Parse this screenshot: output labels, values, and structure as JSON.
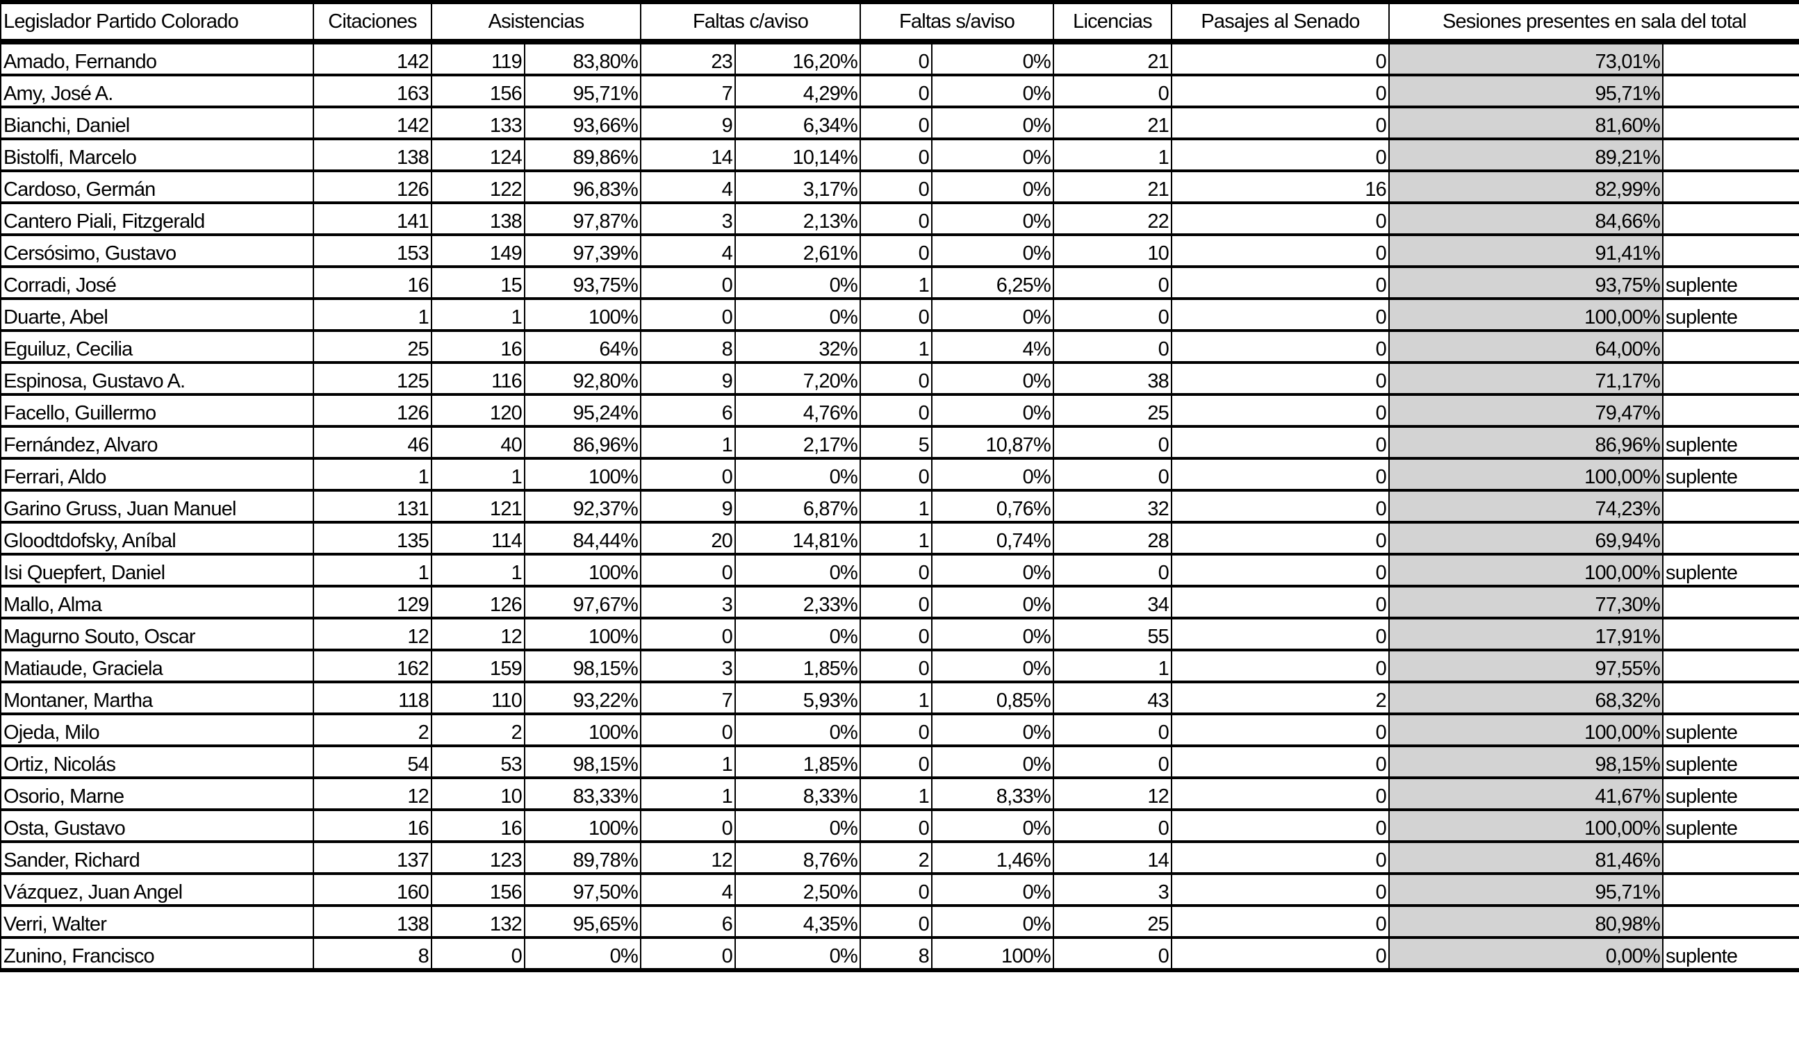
{
  "headers": [
    "Legislador Partido Colorado",
    "Citaciones",
    "Asistencias",
    "Faltas c/aviso",
    "Faltas s/aviso",
    "Licencias",
    "Pasajes al Senado",
    "Sesiones presentes en sala del total"
  ],
  "rows": [
    [
      "Amado, Fernando",
      "142",
      "119",
      "83,80%",
      "23",
      "16,20%",
      "0",
      "0%",
      "21",
      "0",
      "73,01%",
      ""
    ],
    [
      "Amy, José A.",
      "163",
      "156",
      "95,71%",
      "7",
      "4,29%",
      "0",
      "0%",
      "0",
      "0",
      "95,71%",
      ""
    ],
    [
      "Bianchi, Daniel",
      "142",
      "133",
      "93,66%",
      "9",
      "6,34%",
      "0",
      "0%",
      "21",
      "0",
      "81,60%",
      ""
    ],
    [
      "Bistolfi, Marcelo",
      "138",
      "124",
      "89,86%",
      "14",
      "10,14%",
      "0",
      "0%",
      "1",
      "0",
      "89,21%",
      ""
    ],
    [
      "Cardoso, Germán",
      "126",
      "122",
      "96,83%",
      "4",
      "3,17%",
      "0",
      "0%",
      "21",
      "16",
      "82,99%",
      ""
    ],
    [
      "Cantero Piali, Fitzgerald",
      "141",
      "138",
      "97,87%",
      "3",
      "2,13%",
      "0",
      "0%",
      "22",
      "0",
      "84,66%",
      ""
    ],
    [
      "Cersósimo, Gustavo",
      "153",
      "149",
      "97,39%",
      "4",
      "2,61%",
      "0",
      "0%",
      "10",
      "0",
      "91,41%",
      ""
    ],
    [
      "Corradi, José",
      "16",
      "15",
      "93,75%",
      "0",
      "0%",
      "1",
      "6,25%",
      "0",
      "0",
      "93,75%",
      "suplente"
    ],
    [
      "Duarte, Abel",
      "1",
      "1",
      "100%",
      "0",
      "0%",
      "0",
      "0%",
      "0",
      "0",
      "100,00%",
      "suplente"
    ],
    [
      "Eguiluz, Cecilia",
      "25",
      "16",
      "64%",
      "8",
      "32%",
      "1",
      "4%",
      "0",
      "0",
      "64,00%",
      ""
    ],
    [
      "Espinosa, Gustavo A.",
      "125",
      "116",
      "92,80%",
      "9",
      "7,20%",
      "0",
      "0%",
      "38",
      "0",
      "71,17%",
      ""
    ],
    [
      "Facello, Guillermo",
      "126",
      "120",
      "95,24%",
      "6",
      "4,76%",
      "0",
      "0%",
      "25",
      "0",
      "79,47%",
      ""
    ],
    [
      "Fernández, Alvaro",
      "46",
      "40",
      "86,96%",
      "1",
      "2,17%",
      "5",
      "10,87%",
      "0",
      "0",
      "86,96%",
      "suplente"
    ],
    [
      "Ferrari, Aldo",
      "1",
      "1",
      "100%",
      "0",
      "0%",
      "0",
      "0%",
      "0",
      "0",
      "100,00%",
      "suplente"
    ],
    [
      "Garino Gruss, Juan Manuel",
      "131",
      "121",
      "92,37%",
      "9",
      "6,87%",
      "1",
      "0,76%",
      "32",
      "0",
      "74,23%",
      ""
    ],
    [
      "Gloodtdofsky, Aníbal",
      "135",
      "114",
      "84,44%",
      "20",
      "14,81%",
      "1",
      "0,74%",
      "28",
      "0",
      "69,94%",
      ""
    ],
    [
      "Isi Quepfert, Daniel",
      "1",
      "1",
      "100%",
      "0",
      "0%",
      "0",
      "0%",
      "0",
      "0",
      "100,00%",
      "suplente"
    ],
    [
      "Mallo, Alma",
      "129",
      "126",
      "97,67%",
      "3",
      "2,33%",
      "0",
      "0%",
      "34",
      "0",
      "77,30%",
      ""
    ],
    [
      "Magurno Souto, Oscar",
      "12",
      "12",
      "100%",
      "0",
      "0%",
      "0",
      "0%",
      "55",
      "0",
      "17,91%",
      ""
    ],
    [
      "Matiaude, Graciela",
      "162",
      "159",
      "98,15%",
      "3",
      "1,85%",
      "0",
      "0%",
      "1",
      "0",
      "97,55%",
      ""
    ],
    [
      "Montaner, Martha",
      "118",
      "110",
      "93,22%",
      "7",
      "5,93%",
      "1",
      "0,85%",
      "43",
      "2",
      "68,32%",
      ""
    ],
    [
      "Ojeda, Milo",
      "2",
      "2",
      "100%",
      "0",
      "0%",
      "0",
      "0%",
      "0",
      "0",
      "100,00%",
      "suplente"
    ],
    [
      "Ortiz, Nicolás",
      "54",
      "53",
      "98,15%",
      "1",
      "1,85%",
      "0",
      "0%",
      "0",
      "0",
      "98,15%",
      "suplente"
    ],
    [
      "Osorio, Marne",
      "12",
      "10",
      "83,33%",
      "1",
      "8,33%",
      "1",
      "8,33%",
      "12",
      "0",
      "41,67%",
      "suplente"
    ],
    [
      "Osta, Gustavo",
      "16",
      "16",
      "100%",
      "0",
      "0%",
      "0",
      "0%",
      "0",
      "0",
      "100,00%",
      "suplente"
    ],
    [
      "Sander, Richard",
      "137",
      "123",
      "89,78%",
      "12",
      "8,76%",
      "2",
      "1,46%",
      "14",
      "0",
      "81,46%",
      ""
    ],
    [
      "Vázquez, Juan Angel",
      "160",
      "156",
      "97,50%",
      "4",
      "2,50%",
      "0",
      "0%",
      "3",
      "0",
      "95,71%",
      ""
    ],
    [
      "Verri, Walter",
      "138",
      "132",
      "95,65%",
      "6",
      "4,35%",
      "0",
      "0%",
      "25",
      "0",
      "80,98%",
      ""
    ],
    [
      "Zunino, Francisco",
      "8",
      "0",
      "0%",
      "0",
      "0%",
      "8",
      "100%",
      "0",
      "0",
      "0,00%",
      "suplente"
    ]
  ],
  "sala_fill_color": "#d3d3d3"
}
